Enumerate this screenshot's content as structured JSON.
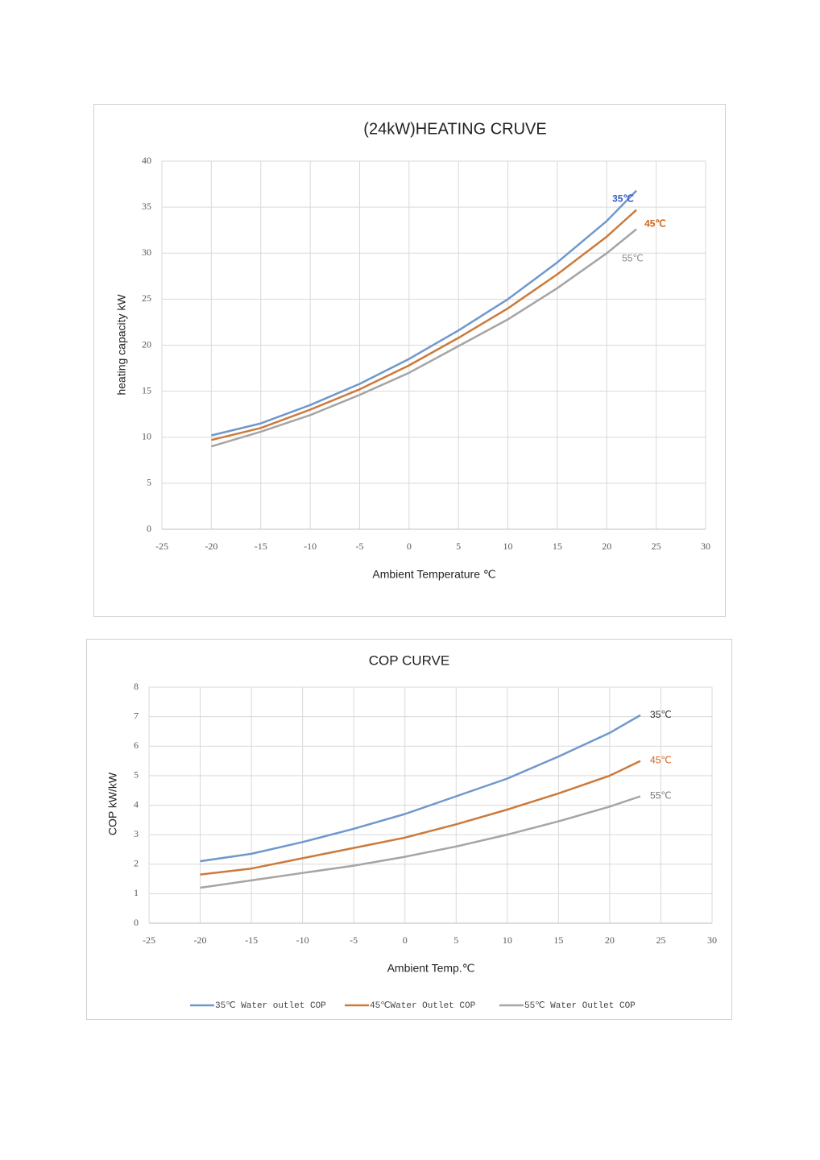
{
  "chart_data": [
    {
      "type": "line",
      "title": "(24kW)HEATING CRUVE",
      "x_label": "Ambient Temperature ℃",
      "y_label": "heating capacity kW",
      "x": [
        -20,
        -15,
        -10,
        -5,
        0,
        5,
        10,
        15,
        20,
        23
      ],
      "series": [
        {
          "name": "35℃",
          "color": "#6f98cc",
          "label_color": "#3a5bc8",
          "values": [
            10.2,
            11.5,
            13.5,
            15.8,
            18.5,
            21.6,
            25.0,
            29.0,
            33.5,
            36.8
          ]
        },
        {
          "name": "45℃",
          "color": "#cc7a3c",
          "label_color": "#d0641c",
          "values": [
            9.7,
            11.0,
            13.0,
            15.2,
            17.8,
            20.8,
            24.0,
            27.7,
            31.8,
            34.7
          ]
        },
        {
          "name": "55℃",
          "color": "#a5a5a5",
          "label_color": "#888888",
          "values": [
            9.0,
            10.6,
            12.4,
            14.6,
            17.0,
            19.9,
            22.8,
            26.2,
            30.0,
            32.6
          ]
        }
      ],
      "xlim": [
        -25,
        30
      ],
      "xticks": [
        -25,
        -20,
        -15,
        -10,
        -5,
        0,
        5,
        10,
        15,
        20,
        25,
        30
      ],
      "ylim": [
        0,
        40
      ],
      "yticks": [
        0,
        5,
        10,
        15,
        20,
        25,
        30,
        35,
        40
      ],
      "grid": true,
      "legend": false
    },
    {
      "type": "line",
      "title": "COP CURVE",
      "x_label": "Ambient Temp.℃",
      "y_label": "COP  kW/kW",
      "x": [
        -20,
        -15,
        -10,
        -5,
        0,
        5,
        10,
        15,
        20,
        23
      ],
      "series": [
        {
          "name": "35℃ Water outlet COP",
          "end_label": "35℃",
          "color": "#6f98cc",
          "label_color": "#333333",
          "values": [
            2.1,
            2.35,
            2.75,
            3.2,
            3.7,
            4.3,
            4.9,
            5.65,
            6.45,
            7.05
          ]
        },
        {
          "name": "45℃Water Outlet COP",
          "end_label": "45℃",
          "color": "#cc7a3c",
          "label_color": "#d0641c",
          "values": [
            1.65,
            1.85,
            2.2,
            2.55,
            2.9,
            3.35,
            3.85,
            4.4,
            5.0,
            5.5
          ]
        },
        {
          "name": "55℃ Water Outlet COP",
          "end_label": "55℃",
          "color": "#a5a5a5",
          "label_color": "#777777",
          "values": [
            1.2,
            1.45,
            1.7,
            1.95,
            2.25,
            2.6,
            3.0,
            3.45,
            3.95,
            4.3
          ]
        }
      ],
      "xlim": [
        -25,
        30
      ],
      "xticks": [
        -25,
        -20,
        -15,
        -10,
        -5,
        0,
        5,
        10,
        15,
        20,
        25,
        30
      ],
      "ylim": [
        0,
        8
      ],
      "yticks": [
        0,
        1,
        2,
        3,
        4,
        5,
        6,
        7,
        8
      ],
      "grid": true,
      "legend": "bottom"
    }
  ]
}
